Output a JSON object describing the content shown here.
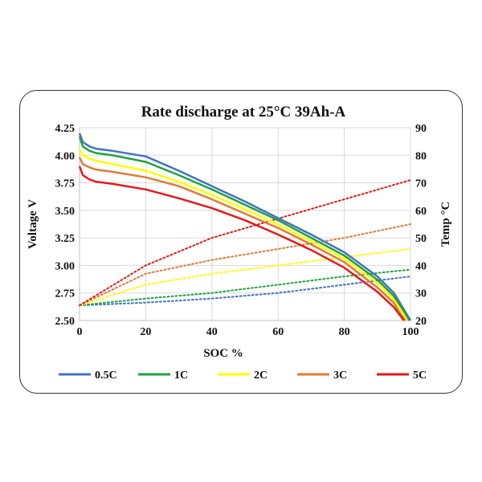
{
  "chart_data": {
    "type": "line",
    "title": "Rate discharge at 25°C  39Ah-A",
    "xlabel": "SOC  %",
    "ylabel": "Voltage  V",
    "y2label": "Temp °C",
    "xlim": [
      0,
      100
    ],
    "ylim": [
      2.5,
      4.25
    ],
    "y2lim": [
      20,
      90
    ],
    "xticks": [
      "0",
      "20",
      "40",
      "60",
      "80",
      "100"
    ],
    "yticks": [
      "2.50",
      "2.75",
      "3.00",
      "3.25",
      "3.50",
      "3.75",
      "4.00",
      "4.25"
    ],
    "y2ticks": [
      "20",
      "30",
      "40",
      "50",
      "60",
      "70",
      "80",
      "90"
    ],
    "grid": true,
    "legend_position": "bottom",
    "series": [
      {
        "name": "0.5C",
        "color": "#4472c4",
        "voltage": [
          [
            0,
            4.2
          ],
          [
            1,
            4.12
          ],
          [
            3,
            4.08
          ],
          [
            5,
            4.06
          ],
          [
            10,
            4.04
          ],
          [
            20,
            3.99
          ],
          [
            30,
            3.86
          ],
          [
            40,
            3.72
          ],
          [
            50,
            3.58
          ],
          [
            60,
            3.43
          ],
          [
            70,
            3.28
          ],
          [
            80,
            3.12
          ],
          [
            90,
            2.9
          ],
          [
            95,
            2.75
          ],
          [
            98,
            2.6
          ],
          [
            100,
            2.5
          ]
        ],
        "temperature": [
          [
            0,
            25.5
          ],
          [
            20,
            26.5
          ],
          [
            40,
            28
          ],
          [
            60,
            30
          ],
          [
            80,
            33
          ],
          [
            100,
            36
          ]
        ]
      },
      {
        "name": "1C",
        "color": "#1fa23f",
        "voltage": [
          [
            0,
            4.17
          ],
          [
            1,
            4.08
          ],
          [
            3,
            4.04
          ],
          [
            5,
            4.02
          ],
          [
            10,
            4.0
          ],
          [
            20,
            3.94
          ],
          [
            30,
            3.82
          ],
          [
            40,
            3.69
          ],
          [
            50,
            3.55
          ],
          [
            60,
            3.41
          ],
          [
            70,
            3.25
          ],
          [
            80,
            3.09
          ],
          [
            90,
            2.87
          ],
          [
            95,
            2.72
          ],
          [
            98,
            2.58
          ],
          [
            99.5,
            2.5
          ]
        ],
        "temperature": [
          [
            0,
            25.5
          ],
          [
            20,
            28
          ],
          [
            40,
            30
          ],
          [
            60,
            33
          ],
          [
            80,
            36
          ],
          [
            100,
            38.5
          ]
        ]
      },
      {
        "name": "2C",
        "color": "#ffff00",
        "voltage": [
          [
            0,
            4.06
          ],
          [
            1,
            4.0
          ],
          [
            3,
            3.97
          ],
          [
            5,
            3.95
          ],
          [
            10,
            3.92
          ],
          [
            20,
            3.86
          ],
          [
            30,
            3.76
          ],
          [
            40,
            3.64
          ],
          [
            50,
            3.51
          ],
          [
            60,
            3.37
          ],
          [
            70,
            3.22
          ],
          [
            80,
            3.06
          ],
          [
            90,
            2.84
          ],
          [
            95,
            2.69
          ],
          [
            98,
            2.55
          ],
          [
            99,
            2.5
          ]
        ],
        "temperature": [
          [
            0,
            25.5
          ],
          [
            20,
            33
          ],
          [
            40,
            37
          ],
          [
            60,
            40
          ],
          [
            80,
            43
          ],
          [
            100,
            46
          ]
        ]
      },
      {
        "name": "3C",
        "color": "#e07b39",
        "voltage": [
          [
            0,
            3.98
          ],
          [
            1,
            3.92
          ],
          [
            3,
            3.89
          ],
          [
            5,
            3.87
          ],
          [
            10,
            3.85
          ],
          [
            20,
            3.8
          ],
          [
            30,
            3.72
          ],
          [
            40,
            3.6
          ],
          [
            50,
            3.47
          ],
          [
            60,
            3.34
          ],
          [
            70,
            3.19
          ],
          [
            80,
            3.03
          ],
          [
            90,
            2.8
          ],
          [
            95,
            2.66
          ],
          [
            97,
            2.56
          ],
          [
            98.5,
            2.5
          ]
        ],
        "temperature": [
          [
            0,
            25.5
          ],
          [
            20,
            37
          ],
          [
            40,
            42
          ],
          [
            60,
            46
          ],
          [
            80,
            50
          ],
          [
            100,
            55
          ]
        ]
      },
      {
        "name": "5C",
        "color": "#e31a1c",
        "voltage": [
          [
            0,
            3.9
          ],
          [
            1,
            3.82
          ],
          [
            3,
            3.78
          ],
          [
            5,
            3.76
          ],
          [
            10,
            3.74
          ],
          [
            20,
            3.69
          ],
          [
            30,
            3.61
          ],
          [
            40,
            3.52
          ],
          [
            50,
            3.41
          ],
          [
            60,
            3.28
          ],
          [
            70,
            3.14
          ],
          [
            80,
            2.98
          ],
          [
            90,
            2.76
          ],
          [
            95,
            2.62
          ],
          [
            98,
            2.5
          ]
        ],
        "temperature": [
          [
            0,
            25.5
          ],
          [
            20,
            40
          ],
          [
            40,
            50
          ],
          [
            60,
            57
          ],
          [
            80,
            64
          ],
          [
            100,
            71
          ]
        ]
      }
    ]
  }
}
